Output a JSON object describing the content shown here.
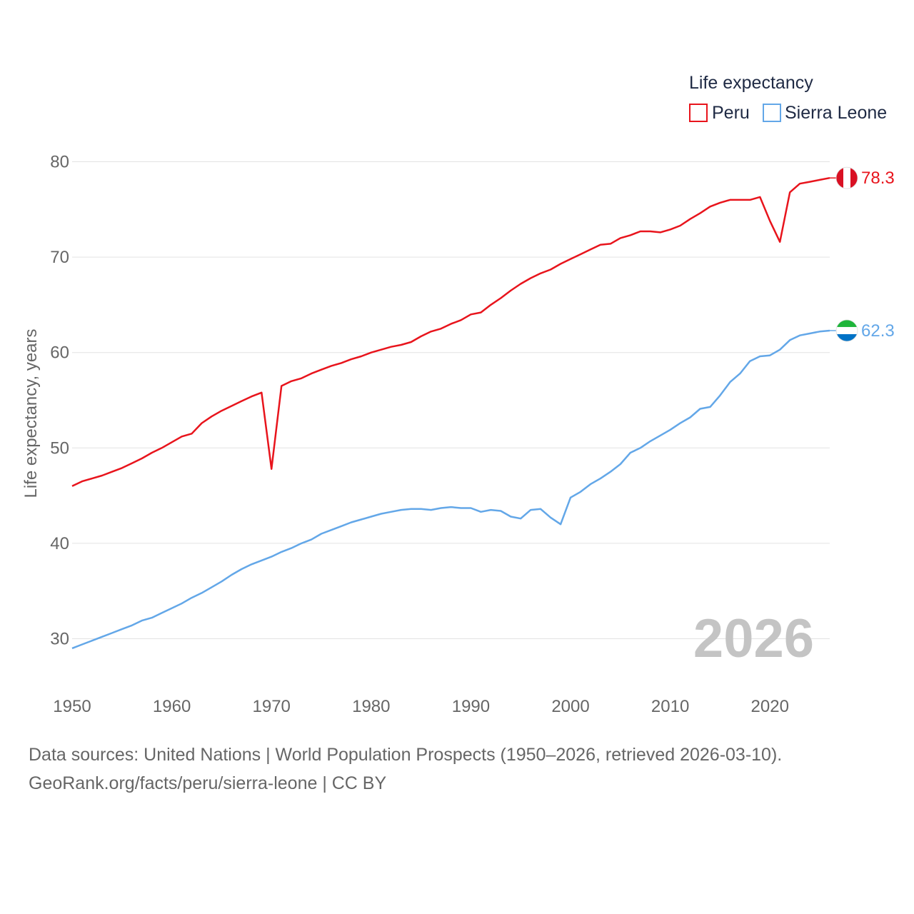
{
  "chart_data": {
    "type": "line",
    "title": "Life expectancy",
    "ylabel": "Life expectancy, years",
    "xlabel": "",
    "year_label": "2026",
    "xlim": [
      1950,
      2026
    ],
    "ylim": [
      25,
      83
    ],
    "x_ticks": [
      1950,
      1960,
      1970,
      1980,
      1990,
      2000,
      2010,
      2020
    ],
    "y_ticks": [
      30,
      40,
      50,
      60,
      70,
      80
    ],
    "legend": {
      "title": "Life expectancy",
      "placement": "top-right"
    },
    "x": [
      1950,
      1951,
      1952,
      1953,
      1954,
      1955,
      1956,
      1957,
      1958,
      1959,
      1960,
      1961,
      1962,
      1963,
      1964,
      1965,
      1966,
      1967,
      1968,
      1969,
      1970,
      1971,
      1972,
      1973,
      1974,
      1975,
      1976,
      1977,
      1978,
      1979,
      1980,
      1981,
      1982,
      1983,
      1984,
      1985,
      1986,
      1987,
      1988,
      1989,
      1990,
      1991,
      1992,
      1993,
      1994,
      1995,
      1996,
      1997,
      1998,
      1999,
      2000,
      2001,
      2002,
      2003,
      2004,
      2005,
      2006,
      2007,
      2008,
      2009,
      2010,
      2011,
      2012,
      2013,
      2014,
      2015,
      2016,
      2017,
      2018,
      2019,
      2020,
      2021,
      2022,
      2023,
      2024,
      2025,
      2026
    ],
    "series": [
      {
        "name": "Peru",
        "color": "#e8141c",
        "end_value": "78.3",
        "flag": "peru-flag",
        "values": [
          46.0,
          46.5,
          46.8,
          47.1,
          47.5,
          47.9,
          48.4,
          48.9,
          49.5,
          50.0,
          50.6,
          51.2,
          51.5,
          52.6,
          53.3,
          53.9,
          54.4,
          54.9,
          55.4,
          55.8,
          47.8,
          56.5,
          57.0,
          57.3,
          57.8,
          58.2,
          58.6,
          58.9,
          59.3,
          59.6,
          60.0,
          60.3,
          60.6,
          60.8,
          61.1,
          61.7,
          62.2,
          62.5,
          63.0,
          63.4,
          64.0,
          64.2,
          65.0,
          65.7,
          66.5,
          67.2,
          67.8,
          68.3,
          68.7,
          69.3,
          69.8,
          70.3,
          70.8,
          71.3,
          71.4,
          72.0,
          72.3,
          72.7,
          72.7,
          72.6,
          72.9,
          73.3,
          74.0,
          74.6,
          75.3,
          75.7,
          76.0,
          76.0,
          76.0,
          76.3,
          73.8,
          71.6,
          76.8,
          77.7,
          77.9,
          78.1,
          78.3
        ]
      },
      {
        "name": "Sierra Leone",
        "color": "#63a7e8",
        "end_value": "62.3",
        "flag": "sierra-leone-flag",
        "values": [
          29.0,
          29.4,
          29.8,
          30.2,
          30.6,
          31.0,
          31.4,
          31.9,
          32.2,
          32.7,
          33.2,
          33.7,
          34.3,
          34.8,
          35.4,
          36.0,
          36.7,
          37.3,
          37.8,
          38.2,
          38.6,
          39.1,
          39.5,
          40.0,
          40.4,
          41.0,
          41.4,
          41.8,
          42.2,
          42.5,
          42.8,
          43.1,
          43.3,
          43.5,
          43.6,
          43.6,
          43.5,
          43.7,
          43.8,
          43.7,
          43.7,
          43.3,
          43.5,
          43.4,
          42.8,
          42.6,
          43.5,
          43.6,
          42.7,
          42.0,
          44.8,
          45.4,
          46.2,
          46.8,
          47.5,
          48.3,
          49.5,
          50.0,
          50.7,
          51.3,
          51.9,
          52.6,
          53.2,
          54.1,
          54.3,
          55.5,
          56.9,
          57.8,
          59.1,
          59.6,
          59.7,
          60.3,
          61.3,
          61.8,
          62.0,
          62.2,
          62.3
        ]
      }
    ]
  },
  "footer": {
    "sources": "Data sources: United Nations | World Population Prospects (1950–2026, retrieved 2026-03-10).",
    "credit": "GeoRank.org/facts/peru/sierra-leone | CC BY"
  }
}
